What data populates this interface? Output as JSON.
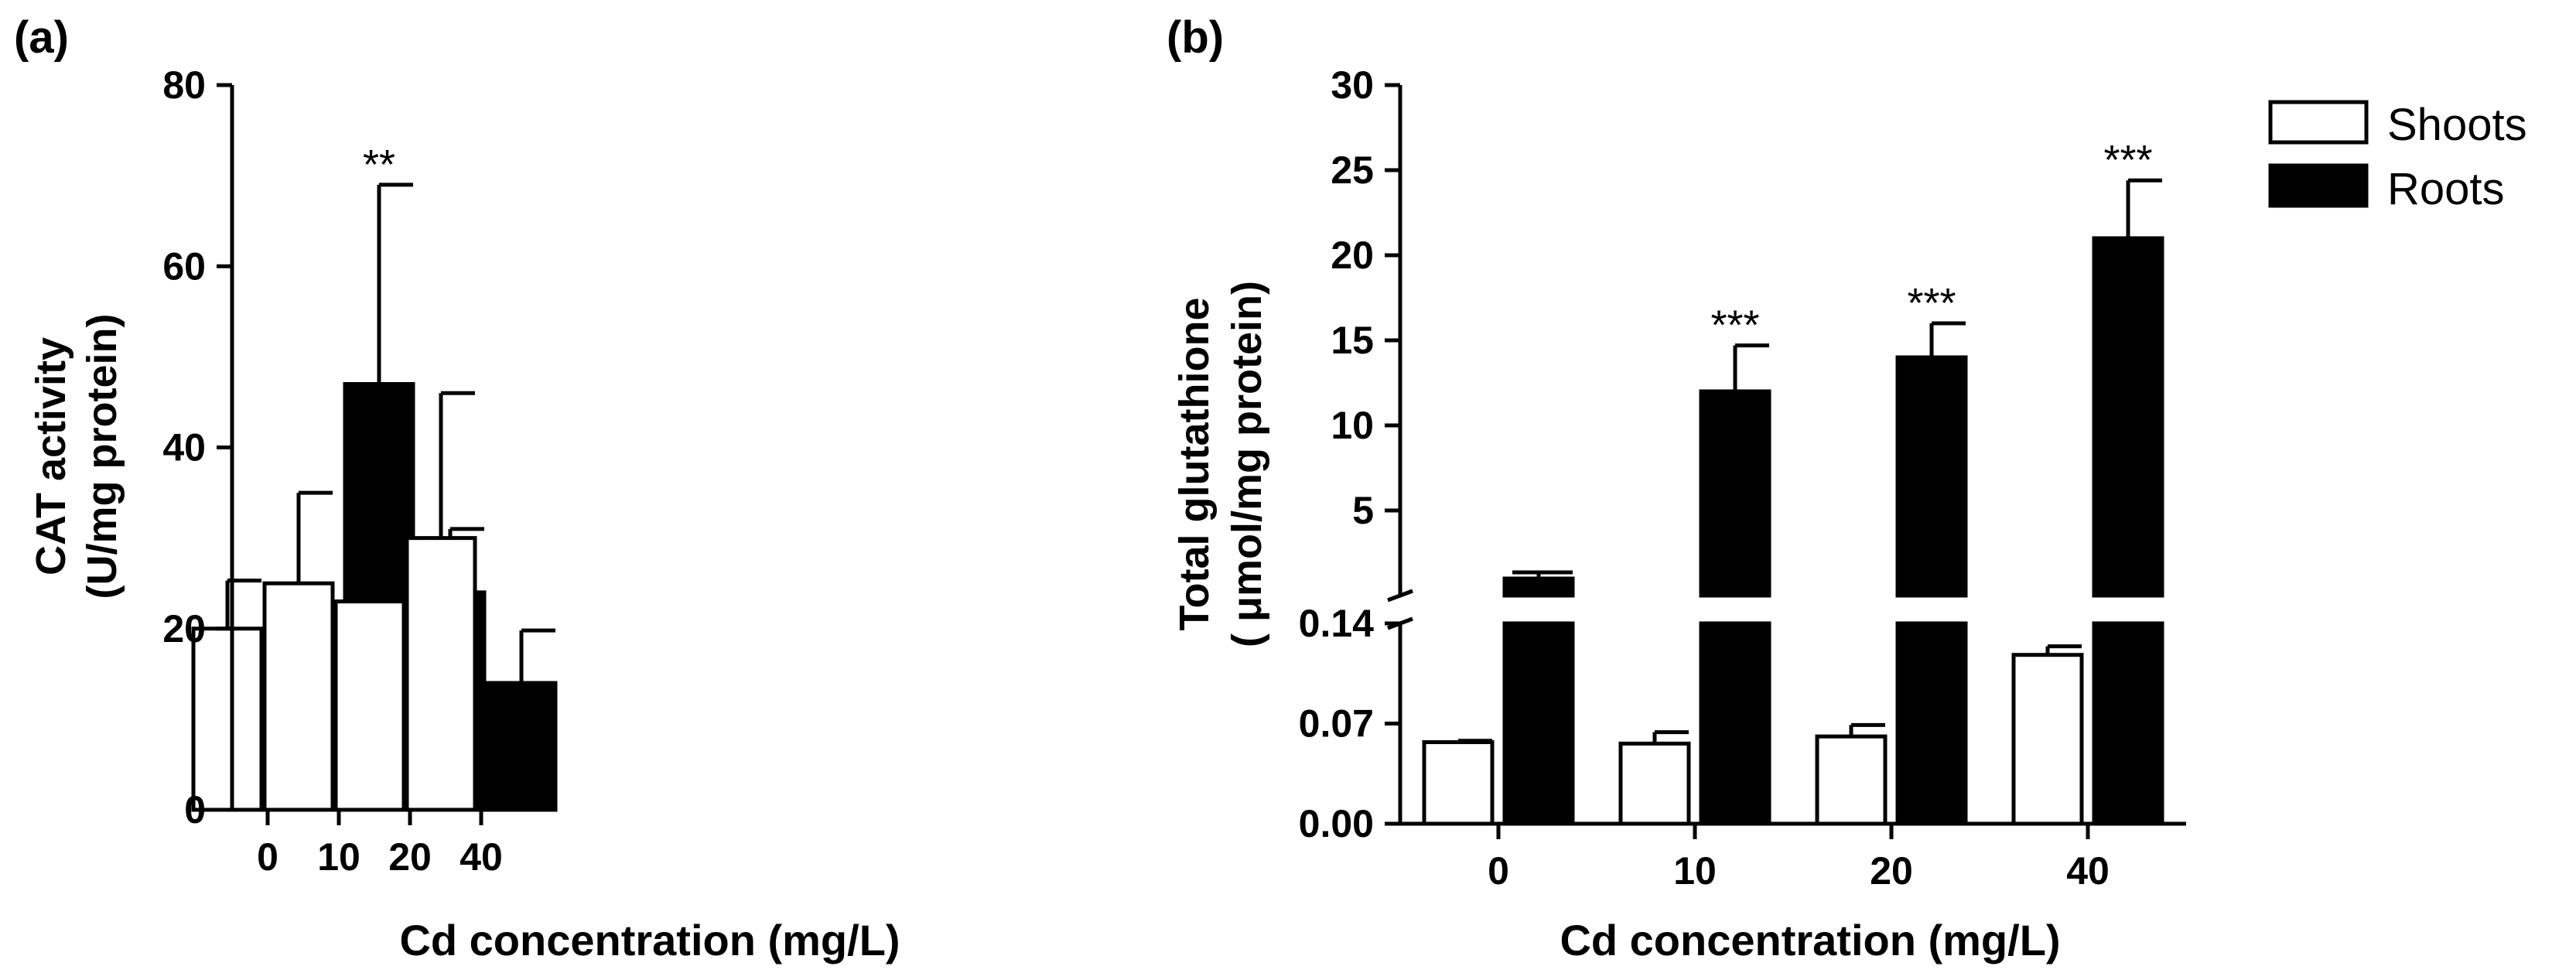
{
  "chart_data": [
    {
      "panel_label": "(a)",
      "type": "bar",
      "title": "",
      "xlabel": "Cd concentration (mg/L)",
      "ylabel": "CAT activity",
      "ylabel_line2": "(U/mg protein)",
      "categories": [
        "0",
        "10",
        "20",
        "40"
      ],
      "ylim": [
        0,
        80
      ],
      "yticks": [
        {
          "value": 0,
          "label": "0"
        },
        {
          "value": 20,
          "label": "20"
        },
        {
          "value": 40,
          "label": "40"
        },
        {
          "value": 60,
          "label": "60"
        },
        {
          "value": 80,
          "label": "80"
        }
      ],
      "series": [
        {
          "name": "Shoots",
          "fill": "#ffffff",
          "values": [
            20,
            25,
            23,
            30
          ],
          "errors": [
            5.3,
            10,
            11,
            16
          ],
          "annotations": [
            "",
            "",
            "",
            ""
          ]
        },
        {
          "name": "Roots",
          "fill": "#000000",
          "values": [
            16,
            47,
            24,
            14
          ],
          "errors": [
            6.7,
            22,
            7,
            5.8
          ],
          "annotations": [
            "",
            "**",
            "",
            ""
          ]
        }
      ]
    },
    {
      "panel_label": "(b)",
      "type": "bar",
      "title": "",
      "xlabel": "Cd concentration (mg/L)",
      "ylabel": "Total glutathione",
      "ylabel_line2": "( μmol/mg protein)",
      "categories": [
        "0",
        "10",
        "20",
        "40"
      ],
      "axis_break": true,
      "lower_ylim": [
        0,
        0.14
      ],
      "upper_ylim": [
        0,
        30
      ],
      "lower_yticks": [
        {
          "value": 0,
          "label": "0.00"
        },
        {
          "value": 0.07,
          "label": "0.07"
        },
        {
          "value": 0.14,
          "label": "0.14"
        }
      ],
      "upper_yticks": [
        {
          "value": 5,
          "label": "5"
        },
        {
          "value": 10,
          "label": "10"
        },
        {
          "value": 15,
          "label": "15"
        },
        {
          "value": 20,
          "label": "20"
        },
        {
          "value": 25,
          "label": "25"
        },
        {
          "value": 30,
          "label": "30"
        }
      ],
      "legend_position": "top-right outside",
      "series": [
        {
          "name": "Shoots",
          "fill": "#ffffff",
          "values": [
            0.057,
            0.056,
            0.061,
            0.118
          ],
          "errors": [
            0.001,
            0.008,
            0.008,
            0.006
          ],
          "annotations": [
            "",
            "",
            "",
            ""
          ]
        },
        {
          "name": "Roots",
          "fill": "#000000",
          "values": [
            1.8,
            12,
            14,
            21
          ],
          "errors": [
            0.3,
            2.7,
            2.0,
            3.4
          ],
          "annotations": [
            "",
            "***",
            "***",
            "***"
          ]
        }
      ]
    }
  ]
}
